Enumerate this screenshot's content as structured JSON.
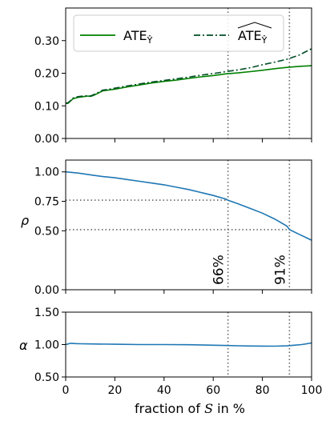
{
  "chart_data": [
    {
      "type": "line",
      "panel": "ate",
      "ylabel": "",
      "xlim": [
        0,
        100
      ],
      "ylim": [
        0.0,
        0.4
      ],
      "yticks": [
        "0.00",
        "0.10",
        "0.20",
        "0.30"
      ],
      "ytick_values": [
        0.0,
        0.1,
        0.2,
        0.3
      ],
      "vlines": [
        66,
        91
      ],
      "legend": {
        "placement": "top",
        "entries": [
          "ATE",
          "ATE"
        ],
        "subscript": "Ŷ"
      },
      "series": [
        {
          "name": "ATE",
          "color": "#008000",
          "style": "solid",
          "x": [
            0,
            1,
            2,
            3,
            5,
            7,
            9,
            10,
            11,
            13,
            15,
            17,
            20,
            25,
            30,
            35,
            40,
            45,
            50,
            55,
            60,
            65,
            70,
            75,
            80,
            85,
            90,
            95,
            100
          ],
          "y": [
            0.107,
            0.108,
            0.115,
            0.122,
            0.126,
            0.128,
            0.13,
            0.129,
            0.131,
            0.138,
            0.146,
            0.148,
            0.151,
            0.158,
            0.164,
            0.17,
            0.175,
            0.179,
            0.184,
            0.189,
            0.193,
            0.198,
            0.201,
            0.205,
            0.209,
            0.214,
            0.218,
            0.221,
            0.223
          ]
        },
        {
          "name": "ATE",
          "color": "#004d26",
          "style": "dashdot",
          "x": [
            0,
            1,
            2,
            3,
            5,
            7,
            9,
            10,
            11,
            13,
            15,
            17,
            20,
            25,
            30,
            35,
            40,
            45,
            50,
            55,
            60,
            65,
            70,
            75,
            80,
            85,
            90,
            95,
            100
          ],
          "y": [
            0.108,
            0.11,
            0.116,
            0.124,
            0.128,
            0.13,
            0.131,
            0.13,
            0.133,
            0.14,
            0.148,
            0.15,
            0.154,
            0.161,
            0.167,
            0.173,
            0.178,
            0.183,
            0.188,
            0.194,
            0.199,
            0.205,
            0.21,
            0.217,
            0.226,
            0.234,
            0.243,
            0.256,
            0.275
          ]
        }
      ]
    },
    {
      "type": "line",
      "panel": "rho",
      "ylabel": "ρ",
      "xlim": [
        0,
        100
      ],
      "ylim": [
        0.0,
        1.1
      ],
      "yticks": [
        "0.00",
        "0.50",
        "0.75",
        "1.00"
      ],
      "ytick_values": [
        0.0,
        0.5,
        0.75,
        1.0
      ],
      "vlines": [
        66,
        91
      ],
      "hlines": [
        {
          "y": 0.76,
          "x_end": 66
        },
        {
          "y": 0.51,
          "x_end": 91
        }
      ],
      "annotations": [
        {
          "text": "66%",
          "x": 66
        },
        {
          "text": "91%",
          "x": 91
        }
      ],
      "series": [
        {
          "name": "",
          "color": "#1f77b4",
          "style": "solid",
          "x": [
            0,
            5,
            10,
            15,
            20,
            25,
            30,
            35,
            40,
            45,
            50,
            55,
            60,
            65,
            66,
            70,
            75,
            80,
            85,
            90,
            91,
            95,
            100
          ],
          "y": [
            1.0,
            0.99,
            0.975,
            0.96,
            0.95,
            0.935,
            0.92,
            0.905,
            0.89,
            0.87,
            0.85,
            0.825,
            0.8,
            0.77,
            0.76,
            0.73,
            0.69,
            0.65,
            0.6,
            0.54,
            0.51,
            0.47,
            0.42
          ]
        }
      ]
    },
    {
      "type": "line",
      "panel": "alpha",
      "ylabel": "α",
      "xlabel": "fraction of S in %",
      "xlabel_parts": {
        "before": "fraction of ",
        "symbol": "S",
        "after": " in %"
      },
      "xlim": [
        0,
        100
      ],
      "xticks": [
        "0",
        "20",
        "40",
        "60",
        "80",
        "100"
      ],
      "xtick_values": [
        0,
        20,
        40,
        60,
        80,
        100
      ],
      "ylim": [
        0.5,
        1.5
      ],
      "yticks": [
        "0.50",
        "1.00",
        "1.50"
      ],
      "ytick_values": [
        0.5,
        1.0,
        1.5
      ],
      "vlines": [
        66,
        91
      ],
      "series": [
        {
          "name": "",
          "color": "#1f77b4",
          "style": "solid",
          "x": [
            0,
            1,
            2,
            4,
            6,
            10,
            20,
            30,
            40,
            50,
            60,
            66,
            70,
            75,
            80,
            85,
            90,
            93,
            96,
            100
          ],
          "y": [
            1.0,
            1.01,
            1.02,
            1.015,
            1.012,
            1.01,
            1.005,
            1.0,
            1.0,
            0.998,
            0.99,
            0.985,
            0.982,
            0.978,
            0.976,
            0.975,
            0.98,
            0.99,
            1.0,
            1.025
          ]
        }
      ]
    }
  ]
}
